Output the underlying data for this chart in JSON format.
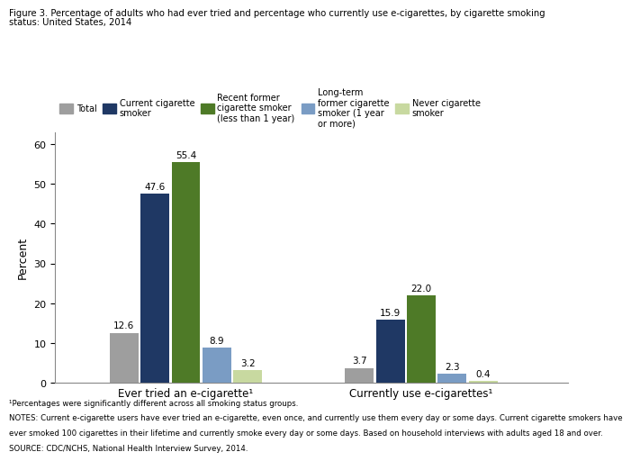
{
  "title_line1": "Figure 3. Percentage of adults who had ever tried and percentage who currently use e-cigarettes, by cigarette smoking",
  "title_line2": "status: United States, 2014",
  "groups": [
    "Ever tried an e-cigarette¹",
    "Currently use e-cigarettes¹"
  ],
  "legend_labels": [
    "Total",
    "Current cigarette\nsmoker",
    "Recent former\ncigarette smoker\n(less than 1 year)",
    "Long-term\nformer cigarette\nsmoker (1 year\nor more)",
    "Never cigarette\nsmoker"
  ],
  "colors": [
    "#9e9e9e",
    "#1f3864",
    "#4e7a27",
    "#7a9cc4",
    "#c8d9a0"
  ],
  "group1_values": [
    12.6,
    47.6,
    55.4,
    8.9,
    3.2
  ],
  "group2_values": [
    3.7,
    15.9,
    22.0,
    2.3,
    0.4
  ],
  "ylabel": "Percent",
  "ylim": [
    0,
    63
  ],
  "yticks": [
    0,
    10,
    20,
    30,
    40,
    50,
    60
  ],
  "footnote1": "¹Percentages were significantly different across all smoking status groups.",
  "footnote2": "NOTES: Current e-cigarette users have ever tried an e-cigarette, even once, and currently use them every day or some days. Current cigarette smokers have",
  "footnote3": "ever smoked 100 cigarettes in their lifetime and currently smoke every day or some days. Based on household interviews with adults aged 18 and over.",
  "footnote4": "SOURCE: CDC/NCHS, National Health Interview Survey, 2014.",
  "background_color": "#ffffff"
}
